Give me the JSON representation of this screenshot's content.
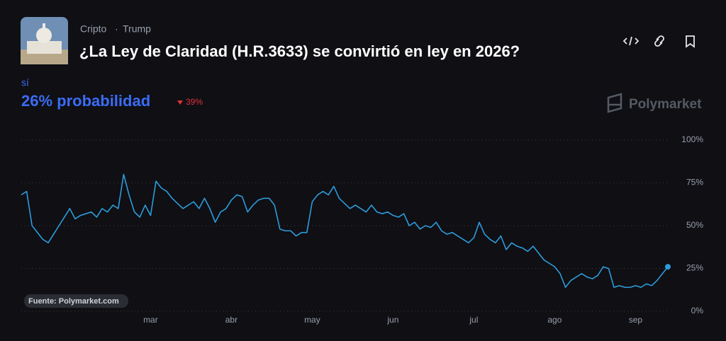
{
  "header": {
    "tags": [
      "Cripto",
      "Trump"
    ],
    "title": "¿La Ley de Claridad (H.R.3633) se convirtió en ley en 2026?",
    "outcome": "sí",
    "probability": "26% probabilidad",
    "change": "39%",
    "brand": "Polymarket"
  },
  "chart_data": {
    "type": "line",
    "source": "Fuente: Polymarket.com",
    "categories": [
      null,
      null,
      null,
      null,
      null,
      null,
      null,
      null,
      null,
      null,
      null,
      null,
      null,
      null,
      null,
      null,
      null,
      null,
      null,
      null,
      null,
      null,
      null,
      null,
      "mar",
      null,
      null,
      null,
      null,
      null,
      null,
      null,
      null,
      null,
      null,
      null,
      null,
      null,
      null,
      "abr",
      null,
      null,
      null,
      null,
      null,
      null,
      null,
      null,
      null,
      null,
      null,
      null,
      null,
      null,
      "may",
      null,
      null,
      null,
      null,
      null,
      null,
      null,
      null,
      null,
      null,
      null,
      null,
      null,
      null,
      "jun",
      null,
      null,
      null,
      null,
      null,
      null,
      null,
      null,
      null,
      null,
      null,
      null,
      null,
      null,
      "jul",
      null,
      null,
      null,
      null,
      null,
      null,
      null,
      null,
      null,
      null,
      null,
      null,
      null,
      null,
      "ago",
      null,
      null,
      null,
      null,
      null,
      null,
      null,
      null,
      null,
      null,
      null,
      null,
      null,
      null,
      "sep",
      null,
      null,
      null,
      null,
      null,
      null
    ],
    "series": [
      {
        "name": "sí",
        "color": "#2d9cdb",
        "values": [
          68,
          70,
          50,
          46,
          42,
          40,
          45,
          50,
          55,
          60,
          54,
          56,
          57,
          58,
          55,
          60,
          58,
          62,
          60,
          80,
          68,
          58,
          55,
          62,
          56,
          76,
          72,
          70,
          66,
          63,
          60,
          62,
          64,
          60,
          66,
          60,
          52,
          58,
          60,
          65,
          68,
          67,
          58,
          62,
          65,
          66,
          66,
          62,
          48,
          47,
          47,
          44,
          46,
          46,
          64,
          68,
          70,
          68,
          73,
          66,
          63,
          60,
          62,
          60,
          58,
          62,
          58,
          57,
          58,
          56,
          55,
          57,
          50,
          52,
          48,
          50,
          49,
          52,
          47,
          45,
          46,
          44,
          42,
          40,
          43,
          52,
          45,
          42,
          40,
          44,
          36,
          40,
          38,
          37,
          35,
          38,
          34,
          30,
          28,
          26,
          22,
          14,
          18,
          20,
          22,
          20,
          19,
          21,
          26,
          25,
          14,
          15,
          14,
          14,
          15,
          14,
          16,
          15,
          18,
          22,
          26
        ]
      }
    ],
    "ylim": [
      0,
      100
    ],
    "yticks": [
      {
        "value": 0,
        "label": "0%"
      },
      {
        "value": 25,
        "label": "25%"
      },
      {
        "value": 50,
        "label": "50%"
      },
      {
        "value": 75,
        "label": "75%"
      },
      {
        "value": 100,
        "label": "100%"
      }
    ],
    "grid": true
  }
}
